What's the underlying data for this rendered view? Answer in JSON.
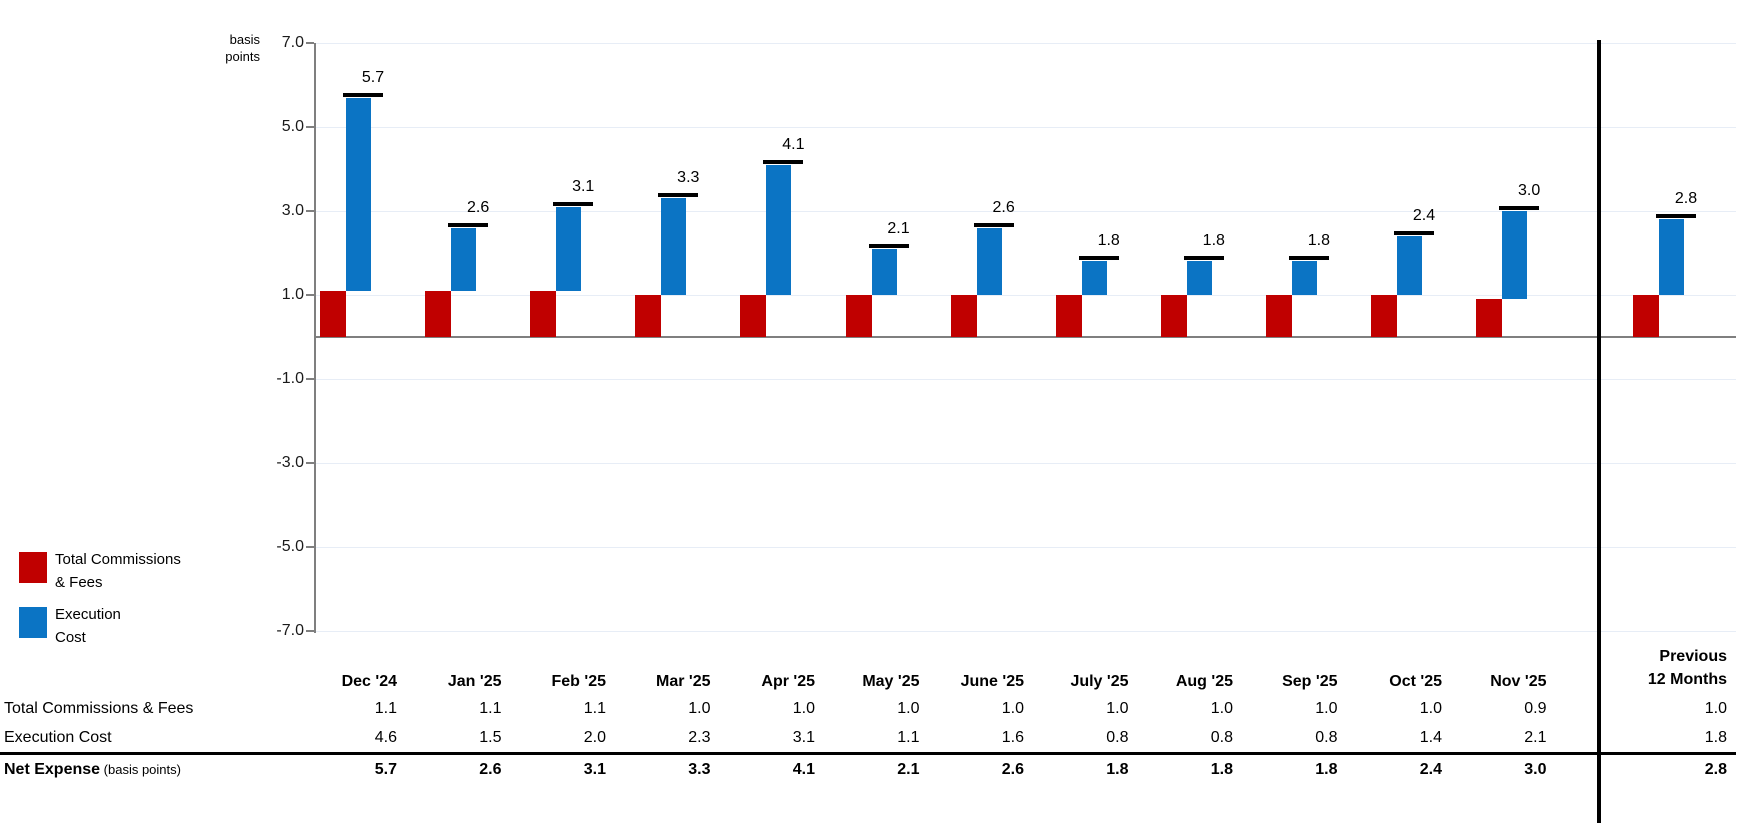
{
  "chart_data": {
    "type": "bar",
    "subtype": "stacked-with-total-markers",
    "title": "",
    "xlabel": "",
    "ylabel": "basis points",
    "y_axis_unit_label": [
      "basis",
      "points"
    ],
    "categories": [
      "Dec '24",
      "Jan '25",
      "Feb '25",
      "Mar '25",
      "Apr '25",
      "May '25",
      "June '25",
      "July '25",
      "Aug '25",
      "Sep '25",
      "Oct '25",
      "Nov '25",
      "Previous 12 Months"
    ],
    "series": [
      {
        "name": "Total Commissions & Fees",
        "color": "#C00000",
        "values": [
          1.1,
          1.1,
          1.1,
          1.0,
          1.0,
          1.0,
          1.0,
          1.0,
          1.0,
          1.0,
          1.0,
          0.9,
          1.0
        ]
      },
      {
        "name": "Execution Cost",
        "color": "#0B74C4",
        "values": [
          4.6,
          1.5,
          2.0,
          2.3,
          3.1,
          1.1,
          1.6,
          0.8,
          0.8,
          0.8,
          1.4,
          2.1,
          1.8
        ]
      }
    ],
    "net_totals": [
      5.7,
      2.6,
      3.1,
      3.3,
      4.1,
      2.1,
      2.6,
      1.8,
      1.8,
      1.8,
      2.4,
      3.0,
      2.8
    ],
    "ylim": [
      -7.0,
      7.0
    ],
    "yticks": [
      7.0,
      5.0,
      3.0,
      1.0,
      -1.0,
      -3.0,
      -5.0,
      -7.0
    ],
    "grid": true,
    "legend_position": "bottom-left"
  },
  "legend": {
    "items": [
      {
        "label_lines": [
          "Total Commissions",
          "& Fees"
        ],
        "color": "#C00000"
      },
      {
        "label_lines": [
          "Execution",
          "Cost"
        ],
        "color": "#0B74C4"
      }
    ]
  },
  "table": {
    "month_columns": [
      "Dec '24",
      "Jan '25",
      "Feb '25",
      "Mar '25",
      "Apr '25",
      "May '25",
      "June '25",
      "July '25",
      "Aug '25",
      "Sep '25",
      "Oct '25",
      "Nov '25"
    ],
    "last_column_header_lines": [
      "Previous",
      "12 Months"
    ],
    "rows": [
      {
        "label": "Total Commissions & Fees",
        "label_suffix": "",
        "bold": false,
        "underline": false,
        "month_values": [
          "1.1",
          "1.1",
          "1.1",
          "1.0",
          "1.0",
          "1.0",
          "1.0",
          "1.0",
          "1.0",
          "1.0",
          "1.0",
          "0.9"
        ],
        "last_value": "1.0"
      },
      {
        "label": "Execution Cost",
        "label_suffix": "",
        "bold": false,
        "underline": true,
        "month_values": [
          "4.6",
          "1.5",
          "2.0",
          "2.3",
          "3.1",
          "1.1",
          "1.6",
          "0.8",
          "0.8",
          "0.8",
          "1.4",
          "2.1"
        ],
        "last_value": "1.8"
      },
      {
        "label": "Net Expense",
        "label_suffix": " (basis points)",
        "bold": true,
        "underline": false,
        "month_values": [
          "5.7",
          "2.6",
          "3.1",
          "3.3",
          "4.1",
          "2.1",
          "2.6",
          "1.8",
          "1.8",
          "1.8",
          "2.4",
          "3.0"
        ],
        "last_value": "2.8"
      }
    ]
  },
  "colors": {
    "commissions_red": "#C00000",
    "execution_blue": "#0B74C4",
    "axis_gray": "#7F7F7F",
    "gridline": "#E7EDF6",
    "separator_black": "#000000",
    "total_marker_black": "#000000"
  }
}
